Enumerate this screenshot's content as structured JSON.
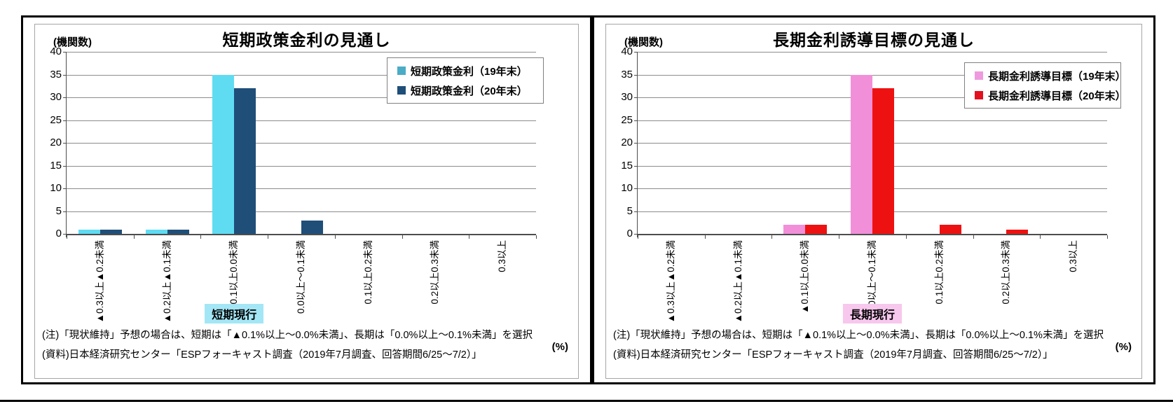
{
  "chart_data": [
    {
      "type": "bar",
      "title": "短期政策金利の見通し",
      "y_axis_unit": "(機関数)",
      "x_axis_unit": "(%)",
      "ylim": [
        0,
        40
      ],
      "yticks": [
        0,
        5,
        10,
        15,
        20,
        25,
        30,
        35,
        40
      ],
      "grid": true,
      "legend_position": "top-right",
      "categories": [
        "▲0.3以上▲0.2未満",
        "▲0.2以上▲0.1未満",
        "▲0.1以上0.0未満",
        "0.0以上～0.1未満",
        "0.1以上0.2未満",
        "0.2以上0.3未満",
        "0.3以上"
      ],
      "series": [
        {
          "name": "短期政策金利（19年末）",
          "values": [
            1,
            1,
            35,
            0,
            0,
            0,
            0
          ],
          "bar_color": "#5fdcf2",
          "legend_color": "#4bacc6"
        },
        {
          "name": "短期政策金利（20年末）",
          "values": [
            1,
            1,
            32,
            3,
            0,
            0,
            0
          ],
          "bar_color": "#1f4e79",
          "legend_color": "#1f4e79"
        }
      ],
      "current_badge": {
        "text": "短期現行",
        "bg_color": "#a3e6f6",
        "category_index": 2
      },
      "notes": [
        "(注)「現状維持」予想の場合は、短期は「▲0.1%以上～0.0%未満」、長期は「0.0%以上～0.1%未満」を選択",
        "(資料)日本経済研究センター「ESPフォーキャスト調査（2019年7月調査、回答期間6/25～7/2）」"
      ]
    },
    {
      "type": "bar",
      "title": "長期金利誘導目標の見通し",
      "y_axis_unit": "(機関数)",
      "x_axis_unit": "(%)",
      "ylim": [
        0,
        40
      ],
      "yticks": [
        0,
        5,
        10,
        15,
        20,
        25,
        30,
        35,
        40
      ],
      "grid": true,
      "legend_position": "top-right",
      "categories": [
        "▲0.3以上▲0.2未満",
        "▲0.2以上▲0.1未満",
        "▲0.1以上0.0未満",
        "0.0以上～0.1未満",
        "0.1以上0.2未満",
        "0.2以上0.3未満",
        "0.3以上"
      ],
      "series": [
        {
          "name": "長期金利誘導目標（19年末）",
          "values": [
            0,
            0,
            2,
            35,
            0,
            0,
            0
          ],
          "bar_color": "#f28fd9",
          "legend_color": "#ef9ade"
        },
        {
          "name": "長期金利誘導目標（20年末）",
          "values": [
            0,
            0,
            2,
            32,
            2,
            1,
            0
          ],
          "bar_color": "#ee1111",
          "legend_color": "#e3101f"
        }
      ],
      "current_badge": {
        "text": "長期現行",
        "bg_color": "#f7c7ed",
        "category_index": 3
      },
      "notes": [
        "(注)「現状維持」予想の場合は、短期は「▲0.1%以上～0.0%未満」、長期は「0.0%以上～0.1%未満」を選択",
        "(資料)日本経済研究センター「ESPフォーキャスト調査（2019年7月調査、回答期間6/25～7/2）」"
      ]
    }
  ]
}
